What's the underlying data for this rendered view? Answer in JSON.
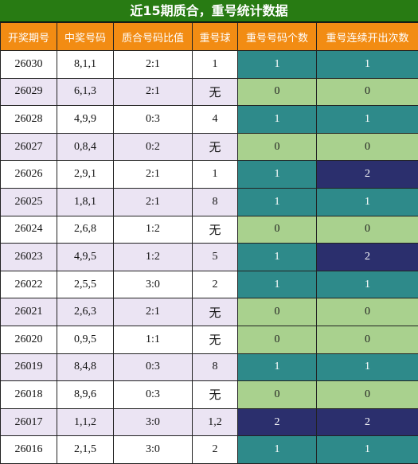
{
  "title": "近15期质合，重号统计数据",
  "headers": [
    "开奖期号",
    "中奖号码",
    "质合号码比值",
    "重号球",
    "重号号码个数",
    "重号连续开出次数"
  ],
  "rows": [
    {
      "period": "26030",
      "numbers": "8,1,1",
      "ratio": "2:1",
      "repeat": "1",
      "count": "1",
      "streak": "1"
    },
    {
      "period": "26029",
      "numbers": "6,1,3",
      "ratio": "2:1",
      "repeat": "无",
      "count": "0",
      "streak": "0"
    },
    {
      "period": "26028",
      "numbers": "4,9,9",
      "ratio": "0:3",
      "repeat": "4",
      "count": "1",
      "streak": "1"
    },
    {
      "period": "26027",
      "numbers": "0,8,4",
      "ratio": "0:2",
      "repeat": "无",
      "count": "0",
      "streak": "0"
    },
    {
      "period": "26026",
      "numbers": "2,9,1",
      "ratio": "2:1",
      "repeat": "1",
      "count": "1",
      "streak": "2"
    },
    {
      "period": "26025",
      "numbers": "1,8,1",
      "ratio": "2:1",
      "repeat": "8",
      "count": "1",
      "streak": "1"
    },
    {
      "period": "26024",
      "numbers": "2,6,8",
      "ratio": "1:2",
      "repeat": "无",
      "count": "0",
      "streak": "0"
    },
    {
      "period": "26023",
      "numbers": "4,9,5",
      "ratio": "1:2",
      "repeat": "5",
      "count": "1",
      "streak": "2"
    },
    {
      "period": "26022",
      "numbers": "2,5,5",
      "ratio": "3:0",
      "repeat": "2",
      "count": "1",
      "streak": "1"
    },
    {
      "period": "26021",
      "numbers": "2,6,3",
      "ratio": "2:1",
      "repeat": "无",
      "count": "0",
      "streak": "0"
    },
    {
      "period": "26020",
      "numbers": "0,9,5",
      "ratio": "1:1",
      "repeat": "无",
      "count": "0",
      "streak": "0"
    },
    {
      "period": "26019",
      "numbers": "8,4,8",
      "ratio": "0:3",
      "repeat": "8",
      "count": "1",
      "streak": "1"
    },
    {
      "period": "26018",
      "numbers": "8,9,6",
      "ratio": "0:3",
      "repeat": "无",
      "count": "0",
      "streak": "0"
    },
    {
      "period": "26017",
      "numbers": "1,1,2",
      "ratio": "3:0",
      "repeat": "1,2",
      "count": "2",
      "streak": "2"
    },
    {
      "period": "26016",
      "numbers": "2,1,5",
      "ratio": "3:0",
      "repeat": "2",
      "count": "1",
      "streak": "1"
    }
  ],
  "colors": {
    "title_bg": "#287b13",
    "header_bg": "#f28c13",
    "row_alt_bg": "#ebe4f3",
    "value_0": "#a9d18e",
    "value_1": "#2e8a8a",
    "value_2": "#2b2f6d"
  }
}
